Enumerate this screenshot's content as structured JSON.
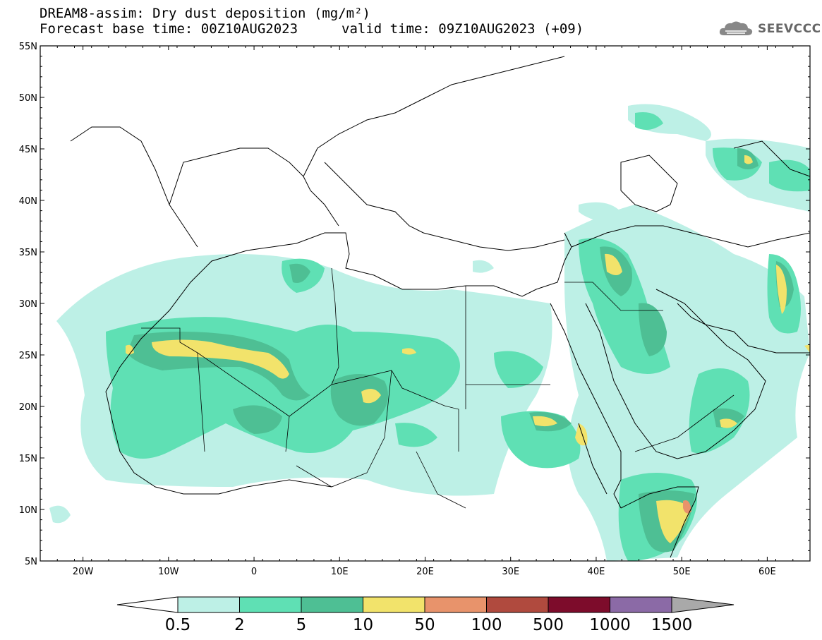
{
  "header": {
    "title_line1": "DREAM8-assim: Dry dust deposition (mg/m²)",
    "title_line2": "Forecast base time: 00Z10AUG2023",
    "valid_time": "valid time: 09Z10AUG2023 (+09)",
    "logo_text": "SEEVCCC",
    "logo_icon": "cloud-icon"
  },
  "map": {
    "lon_labels": [
      "20W",
      "10W",
      "0",
      "10E",
      "20E",
      "30E",
      "40E",
      "50E",
      "60E"
    ],
    "lat_labels": [
      "55N",
      "50N",
      "45N",
      "40N",
      "35N",
      "30N",
      "25N",
      "20N",
      "15N",
      "10N",
      "5N"
    ],
    "lon_range": [
      -25,
      65
    ],
    "lat_range": [
      5,
      55
    ]
  },
  "colorbar": {
    "labels": [
      "0.5",
      "2",
      "5",
      "10",
      "50",
      "100",
      "500",
      "1000",
      "1500"
    ],
    "colors": [
      "#bdf0e6",
      "#5fe0b4",
      "#4ebf94",
      "#f2e36b",
      "#e8936b",
      "#b04a3e",
      "#7d0c2b",
      "#8b6aa6"
    ],
    "under_color": "#ffffff",
    "over_color": "#a9a9a9"
  }
}
